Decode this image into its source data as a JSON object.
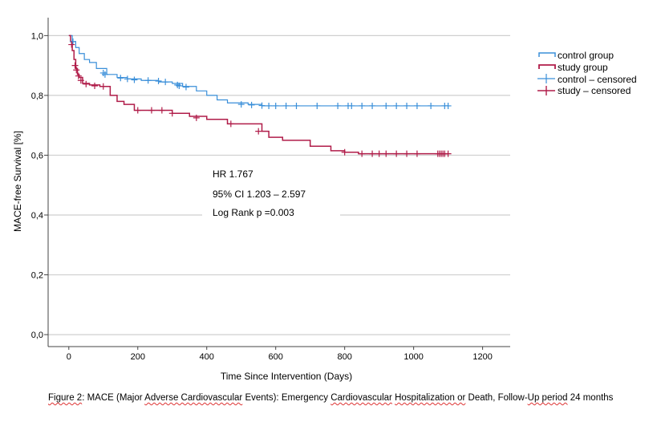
{
  "chart_data": {
    "type": "line",
    "step": true,
    "xlabel": "Time Since Intervention (Days)",
    "ylabel": "MACE-free Survival [%]",
    "xlim": [
      -60,
      1280
    ],
    "ylim": [
      -0.04,
      1.06
    ],
    "xticks": [
      0,
      200,
      400,
      600,
      800,
      1000,
      1200
    ],
    "yticks": [
      0.0,
      0.2,
      0.4,
      0.6,
      0.8,
      1.0
    ],
    "ytick_labels": [
      "0,0",
      "0,2",
      "0,4",
      "0,6",
      "0,8",
      "1,0"
    ],
    "grid": "horizontal",
    "legend_position": "top-right",
    "legend": [
      {
        "label": "control group",
        "kind": "line",
        "color": "#3a8fd9"
      },
      {
        "label": "study group",
        "kind": "line",
        "color": "#b01c49"
      },
      {
        "label": "control – censored",
        "kind": "censor",
        "color": "#3a8fd9"
      },
      {
        "label": "study – censored",
        "kind": "censor",
        "color": "#b01c49"
      }
    ],
    "series": [
      {
        "name": "control group",
        "color": "#3a8fd9",
        "x": [
          0,
          10,
          20,
          30,
          45,
          60,
          80,
          110,
          140,
          170,
          210,
          260,
          300,
          330,
          370,
          400,
          430,
          460,
          520,
          560,
          620,
          700,
          900,
          1100
        ],
        "y": [
          1.0,
          0.98,
          0.96,
          0.94,
          0.92,
          0.91,
          0.89,
          0.87,
          0.86,
          0.855,
          0.85,
          0.845,
          0.84,
          0.83,
          0.815,
          0.8,
          0.785,
          0.775,
          0.77,
          0.765,
          0.765,
          0.765,
          0.765,
          0.765
        ],
        "censored_x": [
          12,
          100,
          105,
          150,
          170,
          190,
          230,
          260,
          280,
          315,
          320,
          340,
          500,
          530,
          560,
          580,
          600,
          630,
          660,
          720,
          780,
          810,
          820,
          850,
          880,
          920,
          950,
          980,
          1010,
          1050,
          1090,
          1100
        ],
        "censored_y": [
          0.98,
          0.875,
          0.87,
          0.858,
          0.855,
          0.852,
          0.85,
          0.848,
          0.845,
          0.835,
          0.832,
          0.828,
          0.77,
          0.768,
          0.766,
          0.765,
          0.765,
          0.765,
          0.765,
          0.765,
          0.765,
          0.765,
          0.765,
          0.765,
          0.765,
          0.765,
          0.765,
          0.765,
          0.765,
          0.765,
          0.765,
          0.765
        ]
      },
      {
        "name": "study group",
        "color": "#b01c49",
        "x": [
          0,
          5,
          10,
          15,
          20,
          25,
          30,
          40,
          60,
          90,
          120,
          140,
          160,
          190,
          230,
          260,
          300,
          350,
          400,
          460,
          560,
          580,
          620,
          700,
          760,
          800,
          840,
          900,
          1000,
          1100
        ],
        "y": [
          1.0,
          0.98,
          0.95,
          0.92,
          0.89,
          0.87,
          0.86,
          0.84,
          0.835,
          0.83,
          0.8,
          0.78,
          0.77,
          0.75,
          0.75,
          0.75,
          0.74,
          0.73,
          0.72,
          0.705,
          0.68,
          0.66,
          0.65,
          0.63,
          0.615,
          0.61,
          0.605,
          0.605,
          0.605,
          0.605
        ],
        "censored_x": [
          8,
          18,
          22,
          28,
          35,
          50,
          75,
          100,
          200,
          240,
          270,
          300,
          370,
          470,
          550,
          800,
          850,
          880,
          900,
          920,
          950,
          980,
          1010,
          1070,
          1075,
          1080,
          1085,
          1090,
          1100
        ],
        "censored_y": [
          0.97,
          0.9,
          0.885,
          0.865,
          0.85,
          0.838,
          0.832,
          0.83,
          0.75,
          0.75,
          0.75,
          0.74,
          0.725,
          0.705,
          0.68,
          0.61,
          0.605,
          0.605,
          0.605,
          0.605,
          0.605,
          0.605,
          0.605,
          0.605,
          0.605,
          0.605,
          0.605,
          0.605,
          0.605
        ]
      }
    ],
    "annotations": [
      "HR 1.767",
      "95% CI 1.203 – 2.597",
      "Log Rank p =0.003"
    ]
  },
  "caption_parts": [
    "Figure 2",
    ": MACE (Major ",
    "Adverse Cardiovascular",
    " Events): Emergency ",
    "Cardiovascular",
    " ",
    "Hospitalization or",
    " Death, Follow-",
    "Up period",
    " 24 months"
  ]
}
